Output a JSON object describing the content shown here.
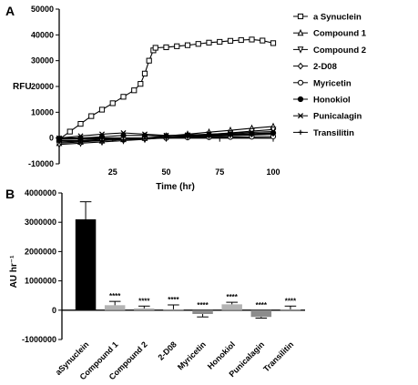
{
  "chart_data": [
    {
      "panel": "A",
      "type": "line",
      "ylabel": "RFU",
      "xlabel": "Time (hr)",
      "xlim": [
        0,
        100
      ],
      "ylim": [
        -10000,
        50000
      ],
      "x_ticks": [
        "25",
        "50",
        "75",
        "100"
      ],
      "y_ticks": [
        "-10000",
        "0",
        "10000",
        "20000",
        "30000",
        "40000",
        "50000"
      ],
      "legend_position": "right",
      "series": [
        {
          "name": "a Synuclein",
          "marker": "square-open",
          "x": [
            0,
            5,
            10,
            15,
            20,
            25,
            30,
            35,
            38,
            40,
            42,
            44,
            45,
            50,
            55,
            60,
            65,
            70,
            75,
            80,
            85,
            90,
            95,
            100
          ],
          "y": [
            -500,
            2500,
            5500,
            8500,
            11000,
            13500,
            16000,
            18500,
            21000,
            25000,
            30000,
            34000,
            35000,
            35200,
            35600,
            36000,
            36500,
            37000,
            37300,
            37700,
            38000,
            38200,
            37800,
            36800
          ]
        },
        {
          "name": "Compound 1",
          "marker": "triangle-up-open",
          "x": [
            0,
            10,
            20,
            30,
            40,
            50,
            60,
            70,
            80,
            90,
            100
          ],
          "y": [
            -2000,
            -1500,
            -1000,
            -500,
            0,
            800,
            1500,
            2300,
            3000,
            3800,
            4500
          ]
        },
        {
          "name": "Compound 2",
          "marker": "triangle-down-open",
          "x": [
            0,
            10,
            20,
            30,
            40,
            50,
            60,
            70,
            80,
            90,
            100
          ],
          "y": [
            -2500,
            -2000,
            -1500,
            -1000,
            -500,
            200,
            800,
            1400,
            2000,
            2700,
            3300
          ]
        },
        {
          "name": "2-D08",
          "marker": "diamond-open",
          "x": [
            0,
            10,
            20,
            30,
            40,
            50,
            60,
            70,
            80,
            90,
            100
          ],
          "y": [
            -1000,
            -1000,
            -500,
            -300,
            0,
            300,
            600,
            900,
            1200,
            1500,
            1800
          ]
        },
        {
          "name": "Myricetin",
          "marker": "circle-open",
          "x": [
            0,
            10,
            20,
            30,
            40,
            50,
            60,
            70,
            80,
            90,
            100
          ],
          "y": [
            -500,
            -400,
            -300,
            -200,
            -100,
            0,
            200,
            300,
            400,
            500,
            600
          ]
        },
        {
          "name": "Honokiol",
          "marker": "circle-filled",
          "x": [
            0,
            10,
            20,
            30,
            40,
            50,
            60,
            70,
            80,
            90,
            100
          ],
          "y": [
            -200,
            0,
            500,
            1000,
            1000,
            800,
            1000,
            1200,
            1500,
            1700,
            2000
          ]
        },
        {
          "name": "Punicalagin",
          "marker": "x",
          "x": [
            0,
            10,
            20,
            30,
            40,
            50,
            60,
            70,
            80,
            90,
            100
          ],
          "y": [
            0,
            800,
            1500,
            2000,
            1500,
            1000,
            1200,
            1500,
            1800,
            2200,
            2500
          ]
        },
        {
          "name": "Transilitin",
          "marker": "plus",
          "x": [
            0,
            10,
            20,
            30,
            40,
            50,
            60,
            70,
            80,
            90,
            100
          ],
          "y": [
            -1500,
            -1200,
            -900,
            -600,
            -300,
            0,
            300,
            600,
            900,
            1200,
            1500
          ]
        }
      ]
    },
    {
      "panel": "B",
      "type": "bar",
      "ylabel": "AU hr⁻¹",
      "ylim": [
        -1000000,
        4000000
      ],
      "y_ticks": [
        "-1000000",
        "0",
        "1000000",
        "2000000",
        "3000000",
        "4000000"
      ],
      "categories": [
        "aSynuclein",
        "Compound 1",
        "Compound 2",
        "2-D08",
        "Myricetin",
        "Honokiol",
        "Punicalagin",
        "Transilitin"
      ],
      "values": [
        3100000,
        170000,
        60000,
        30000,
        -130000,
        200000,
        -230000,
        30000
      ],
      "errors": [
        600000,
        130000,
        80000,
        150000,
        100000,
        70000,
        40000,
        110000
      ],
      "colors": [
        "#000000",
        "#b3b3b3",
        "#b3b3b3",
        "#b3b3b3",
        "#8c8c8c",
        "#b3b3b3",
        "#8c8c8c",
        "#b3b3b3"
      ],
      "annotations": [
        "",
        "****",
        "****",
        "****",
        "****",
        "****",
        "****",
        "****"
      ]
    }
  ],
  "panel_labels": {
    "a": "A",
    "b": "B"
  }
}
